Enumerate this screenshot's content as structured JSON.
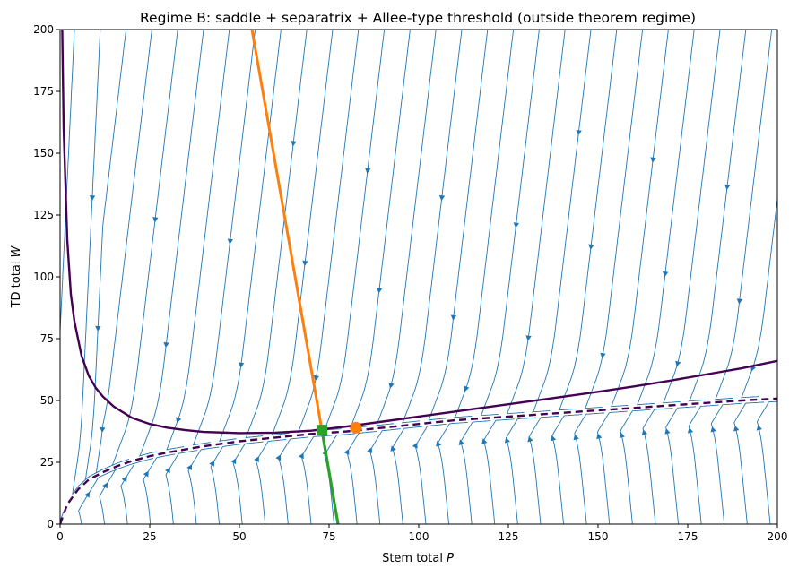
{
  "chart_data": {
    "type": "line",
    "title": "Regime B: saddle + separatrix + Allee-type threshold (outside theorem regime)",
    "xlabel": "Stem total",
    "xlabel_var": "P",
    "ylabel": "TD total",
    "ylabel_var": "W",
    "xlim": [
      0,
      200
    ],
    "ylim": [
      0,
      200
    ],
    "xticks": [
      "0",
      "25",
      "50",
      "75",
      "100",
      "125",
      "150",
      "175",
      "200"
    ],
    "yticks": [
      "0",
      "25",
      "50",
      "75",
      "100",
      "125",
      "150",
      "175",
      "200"
    ],
    "grid": false,
    "colors": {
      "stream": "#1f77b4",
      "nullcline": "#440154",
      "separatrix_upper": "#ff7f0e",
      "separatrix_lower": "#2ca02c",
      "saddle": "#2ca02c",
      "node": "#ff7f0e"
    },
    "series": [
      {
        "style": "solid",
        "x": [
          0.6,
          1,
          2,
          3,
          4,
          6,
          8,
          10,
          12,
          15,
          20,
          25,
          30,
          35,
          40,
          50,
          60,
          70,
          80,
          90,
          100,
          110,
          120,
          130,
          140,
          150,
          160,
          170,
          180,
          190,
          200
        ],
        "y": [
          200,
          160,
          115,
          93,
          82,
          68,
          60,
          55,
          51.5,
          47.5,
          43,
          40.5,
          39,
          38,
          37.3,
          36.8,
          37,
          37.8,
          39.5,
          41.5,
          43.5,
          45.5,
          47.5,
          49.5,
          51.5,
          53.5,
          55.7,
          58,
          60.5,
          63,
          66
        ]
      },
      {
        "style": "dashed",
        "x": [
          0,
          2,
          5,
          8,
          12,
          16,
          20,
          25,
          30,
          40,
          50,
          60,
          70,
          80,
          90,
          100,
          110,
          120,
          130,
          140,
          150,
          160,
          170,
          180,
          190,
          200
        ],
        "y": [
          0,
          8,
          14,
          18,
          21,
          23.5,
          25.5,
          27.5,
          29,
          31.5,
          33.5,
          35,
          36.5,
          37.5,
          39,
          40.5,
          42,
          43,
          44,
          45,
          46,
          47,
          48,
          49,
          50,
          50.8
        ]
      },
      {
        "style": "solid",
        "x": [
          53.5,
          73
        ],
        "y": [
          200,
          38
        ]
      },
      {
        "style": "solid",
        "x": [
          73,
          77.5
        ],
        "y": [
          38,
          0
        ]
      }
    ],
    "points": [
      {
        "marker": "square",
        "x": 73,
        "y": 38
      },
      {
        "marker": "circle",
        "x": 82.5,
        "y": 39
      }
    ]
  }
}
